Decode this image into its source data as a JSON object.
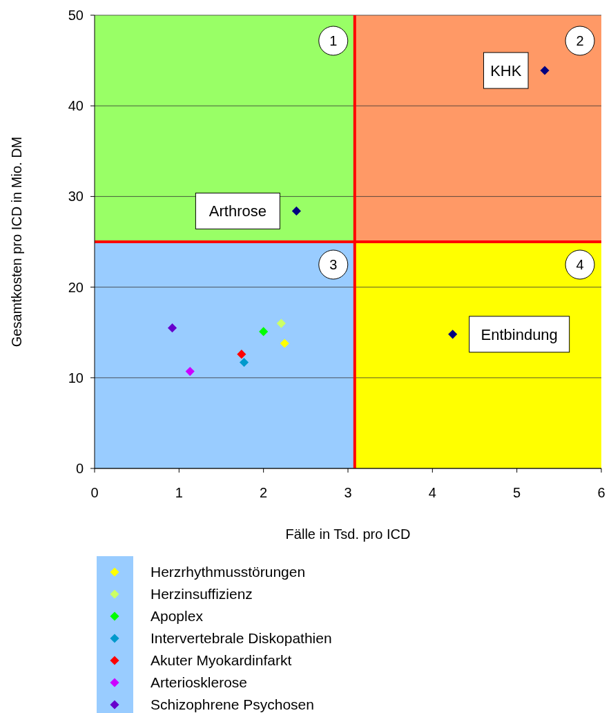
{
  "chart_data": {
    "type": "scatter",
    "xlabel": "Fälle in Tsd. pro ICD",
    "ylabel": "Gesamtkosten pro ICD in Mio. DM",
    "xlim": [
      0,
      6
    ],
    "xticks": [
      0,
      1,
      2,
      3,
      4,
      5,
      6
    ],
    "ylim": [
      0,
      50
    ],
    "yticks": [
      0,
      10,
      20,
      30,
      40,
      50
    ],
    "grid": "y",
    "marker": "diamond",
    "legend": "bottom",
    "series": [
      {
        "name": "Herzrhythmusstörungen",
        "color": "#ffff00",
        "x": [
          2.25
        ],
        "values": [
          13.8
        ]
      },
      {
        "name": "Herzinsuffizienz",
        "color": "#ccff66",
        "x": [
          2.21
        ],
        "values": [
          16.0
        ]
      },
      {
        "name": "Apoplex",
        "color": "#00ff00",
        "x": [
          2.0
        ],
        "values": [
          15.1
        ]
      },
      {
        "name": "Intervertebrale Diskopathien",
        "color": "#0099cc",
        "x": [
          1.77
        ],
        "values": [
          11.7
        ]
      },
      {
        "name": "Akuter Myokardinfarkt",
        "color": "#ff0000",
        "x": [
          1.74
        ],
        "values": [
          12.6
        ]
      },
      {
        "name": "Arteriosklerose",
        "color": "#cc00ff",
        "x": [
          1.13
        ],
        "values": [
          10.7
        ]
      },
      {
        "name": "Schizophrene Psychosen",
        "color": "#6600cc",
        "x": [
          0.92
        ],
        "values": [
          15.5
        ]
      },
      {
        "color": "#000080",
        "x": [
          2.39,
          5.33,
          4.24
        ],
        "values": [
          28.4,
          43.9,
          14.8
        ]
      }
    ],
    "ref_lines": [
      {
        "axis": "x",
        "value": 3.08,
        "color": "#ff0000"
      },
      {
        "axis": "y",
        "value": 25,
        "color": "#ff0000"
      }
    ],
    "annotations": [
      "1",
      "2",
      "3",
      "4",
      {
        "text": "Arthrose",
        "x": 2.39,
        "y": 28.4
      },
      {
        "text": "KHK",
        "x": 5.33,
        "y": 43.9
      },
      {
        "text": "Entbindung",
        "x": 4.24,
        "y": 14.8
      }
    ]
  }
}
